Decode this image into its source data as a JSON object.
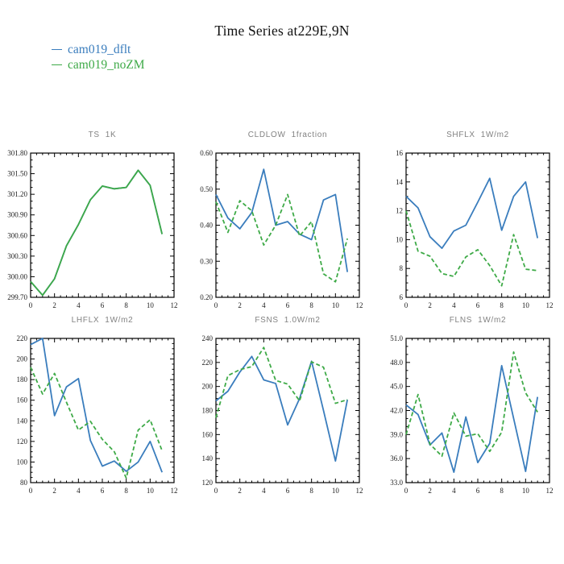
{
  "header": {
    "title": "Time Series at229E,9N"
  },
  "legend": {
    "items": [
      {
        "label": "cam019_dflt",
        "color": "#3a7dbd"
      },
      {
        "label": "cam019_noZM",
        "color": "#3eaa47"
      }
    ]
  },
  "chart_data": [
    {
      "type": "line",
      "title": "TS  1K",
      "x": [
        0,
        1,
        2,
        3,
        4,
        5,
        6,
        7,
        8,
        9,
        10,
        11
      ],
      "xlim": [
        0,
        12
      ],
      "xticks": [
        0,
        2,
        4,
        6,
        8,
        10,
        12
      ],
      "xtick_labels": [
        "0",
        "2",
        "4",
        "6",
        "8",
        "10",
        "12"
      ],
      "x_minor_step": 0.5,
      "ylim": [
        299.7,
        301.8
      ],
      "yticks": [
        299.7,
        300.0,
        300.3,
        300.6,
        300.9,
        301.2,
        301.5,
        301.8
      ],
      "ytick_labels": [
        "299.70",
        "300.00",
        "300.30",
        "300.60",
        "300.90",
        "301.20",
        "301.50",
        "301.80"
      ],
      "y_minor_step": 0.1,
      "grid": false,
      "legend_position": "figure-top-left",
      "series": [
        {
          "name": "cam019_dflt",
          "color": "#3a7dbd",
          "line": "solid",
          "values": [
            299.93,
            299.73,
            299.97,
            300.45,
            300.76,
            301.12,
            301.32,
            301.28,
            301.3,
            301.55,
            301.33,
            300.62
          ]
        },
        {
          "name": "cam019_noZM",
          "color": "#3eaa47",
          "line": "solid",
          "values": [
            299.93,
            299.73,
            299.97,
            300.45,
            300.76,
            301.12,
            301.32,
            301.28,
            301.3,
            301.55,
            301.33,
            300.62
          ]
        }
      ]
    },
    {
      "type": "line",
      "title": "CLDLOW  1fraction",
      "x": [
        0,
        1,
        2,
        3,
        4,
        5,
        6,
        7,
        8,
        9,
        10,
        11
      ],
      "xlim": [
        0,
        12
      ],
      "xticks": [
        0,
        2,
        4,
        6,
        8,
        10,
        12
      ],
      "xtick_labels": [
        "0",
        "2",
        "4",
        "6",
        "8",
        "10",
        "12"
      ],
      "x_minor_step": 0.5,
      "ylim": [
        0.2,
        0.6
      ],
      "yticks": [
        0.2,
        0.3,
        0.4,
        0.5,
        0.6
      ],
      "ytick_labels": [
        "0.20",
        "0.30",
        "0.40",
        "0.50",
        "0.60"
      ],
      "y_minor_step": 0.02,
      "grid": false,
      "series": [
        {
          "name": "cam019_dflt",
          "color": "#3a7dbd",
          "line": "solid",
          "values": [
            0.485,
            0.42,
            0.39,
            0.435,
            0.555,
            0.4,
            0.41,
            0.375,
            0.36,
            0.47,
            0.485,
            0.27
          ]
        },
        {
          "name": "cam019_noZM",
          "color": "#3eaa47",
          "line": "dashed",
          "values": [
            0.465,
            0.38,
            0.468,
            0.44,
            0.345,
            0.4,
            0.485,
            0.37,
            0.41,
            0.265,
            0.243,
            0.363
          ]
        }
      ]
    },
    {
      "type": "line",
      "title": "SHFLX  1W/m2",
      "x": [
        0,
        1,
        2,
        3,
        4,
        5,
        6,
        7,
        8,
        9,
        10,
        11
      ],
      "xlim": [
        0,
        12
      ],
      "xticks": [
        0,
        2,
        4,
        6,
        8,
        10,
        12
      ],
      "xtick_labels": [
        "0",
        "2",
        "4",
        "6",
        "8",
        "10",
        "12"
      ],
      "x_minor_step": 0.5,
      "ylim": [
        6,
        16
      ],
      "yticks": [
        6,
        8,
        10,
        12,
        14,
        16
      ],
      "ytick_labels": [
        "6",
        "8",
        "10",
        "12",
        "14",
        "16"
      ],
      "y_minor_step": 0.5,
      "grid": false,
      "series": [
        {
          "name": "cam019_dflt",
          "color": "#3a7dbd",
          "line": "solid",
          "values": [
            13.0,
            12.2,
            10.2,
            9.4,
            10.6,
            11.0,
            12.6,
            14.25,
            10.65,
            13.0,
            14.0,
            10.1
          ]
        },
        {
          "name": "cam019_noZM",
          "color": "#3eaa47",
          "line": "dashed",
          "values": [
            12.0,
            9.2,
            8.85,
            7.65,
            7.45,
            8.8,
            9.3,
            8.2,
            6.8,
            10.35,
            7.95,
            7.85
          ]
        }
      ]
    },
    {
      "type": "line",
      "title": "LHFLX  1W/m2",
      "x": [
        0,
        1,
        2,
        3,
        4,
        5,
        6,
        7,
        8,
        9,
        10,
        11
      ],
      "xlim": [
        0,
        12
      ],
      "xticks": [
        0,
        2,
        4,
        6,
        8,
        10,
        12
      ],
      "xtick_labels": [
        "0",
        "2",
        "4",
        "6",
        "8",
        "10",
        "12"
      ],
      "x_minor_step": 0.5,
      "ylim": [
        80,
        220
      ],
      "yticks": [
        80,
        100,
        120,
        140,
        160,
        180,
        200,
        220
      ],
      "ytick_labels": [
        "80",
        "100",
        "120",
        "140",
        "160",
        "180",
        "200",
        "220"
      ],
      "y_minor_step": 5,
      "grid": false,
      "series": [
        {
          "name": "cam019_dflt",
          "color": "#3a7dbd",
          "line": "solid",
          "values": [
            214,
            220,
            145,
            173,
            181,
            121,
            96,
            101,
            91,
            100,
            120,
            90
          ]
        },
        {
          "name": "cam019_noZM",
          "color": "#3eaa47",
          "line": "dashed",
          "values": [
            192,
            166,
            186,
            158,
            131,
            139.5,
            122,
            110,
            84.5,
            131,
            141,
            111
          ]
        }
      ]
    },
    {
      "type": "line",
      "title": "FSNS  1.0W/m2",
      "x": [
        0,
        1,
        2,
        3,
        4,
        5,
        6,
        7,
        8,
        9,
        10,
        11
      ],
      "xlim": [
        0,
        12
      ],
      "xticks": [
        0,
        2,
        4,
        6,
        8,
        10,
        12
      ],
      "xtick_labels": [
        "0",
        "2",
        "4",
        "6",
        "8",
        "10",
        "12"
      ],
      "x_minor_step": 0.5,
      "ylim": [
        120,
        240
      ],
      "yticks": [
        120,
        140,
        160,
        180,
        200,
        220,
        240
      ],
      "ytick_labels": [
        "120",
        "140",
        "160",
        "180",
        "200",
        "220",
        "240"
      ],
      "y_minor_step": 5,
      "grid": false,
      "series": [
        {
          "name": "cam019_dflt",
          "color": "#3a7dbd",
          "line": "solid",
          "values": [
            188,
            196,
            212,
            225,
            205.5,
            202.5,
            168,
            190,
            221,
            180,
            138,
            189
          ]
        },
        {
          "name": "cam019_noZM",
          "color": "#3eaa47",
          "line": "dashed",
          "values": [
            174,
            209,
            214,
            216.5,
            232.5,
            205,
            202,
            188,
            220.5,
            216,
            186,
            189
          ]
        }
      ]
    },
    {
      "type": "line",
      "title": "FLNS  1W/m2",
      "x": [
        0,
        1,
        2,
        3,
        4,
        5,
        6,
        7,
        8,
        9,
        10,
        11
      ],
      "xlim": [
        0,
        12
      ],
      "xticks": [
        0,
        2,
        4,
        6,
        8,
        10,
        12
      ],
      "xtick_labels": [
        "0",
        "2",
        "4",
        "6",
        "8",
        "10",
        "12"
      ],
      "x_minor_step": 0.5,
      "ylim": [
        33.0,
        51.0
      ],
      "yticks": [
        33.0,
        36.0,
        39.0,
        42.0,
        45.0,
        48.0,
        51.0
      ],
      "ytick_labels": [
        "33.0",
        "36.0",
        "39.0",
        "42.0",
        "45.0",
        "48.0",
        "51.0"
      ],
      "y_minor_step": 1,
      "grid": false,
      "series": [
        {
          "name": "cam019_dflt",
          "color": "#3a7dbd",
          "line": "solid",
          "values": [
            42.7,
            41.5,
            37.7,
            39.2,
            34.3,
            41.2,
            35.5,
            37.9,
            47.6,
            41.0,
            34.4,
            43.7
          ]
        },
        {
          "name": "cam019_noZM",
          "color": "#3eaa47",
          "line": "dashed",
          "values": [
            39.0,
            44.0,
            37.8,
            36.3,
            41.7,
            38.8,
            39.1,
            36.9,
            39.3,
            49.3,
            44.2,
            41.8
          ]
        }
      ]
    }
  ]
}
